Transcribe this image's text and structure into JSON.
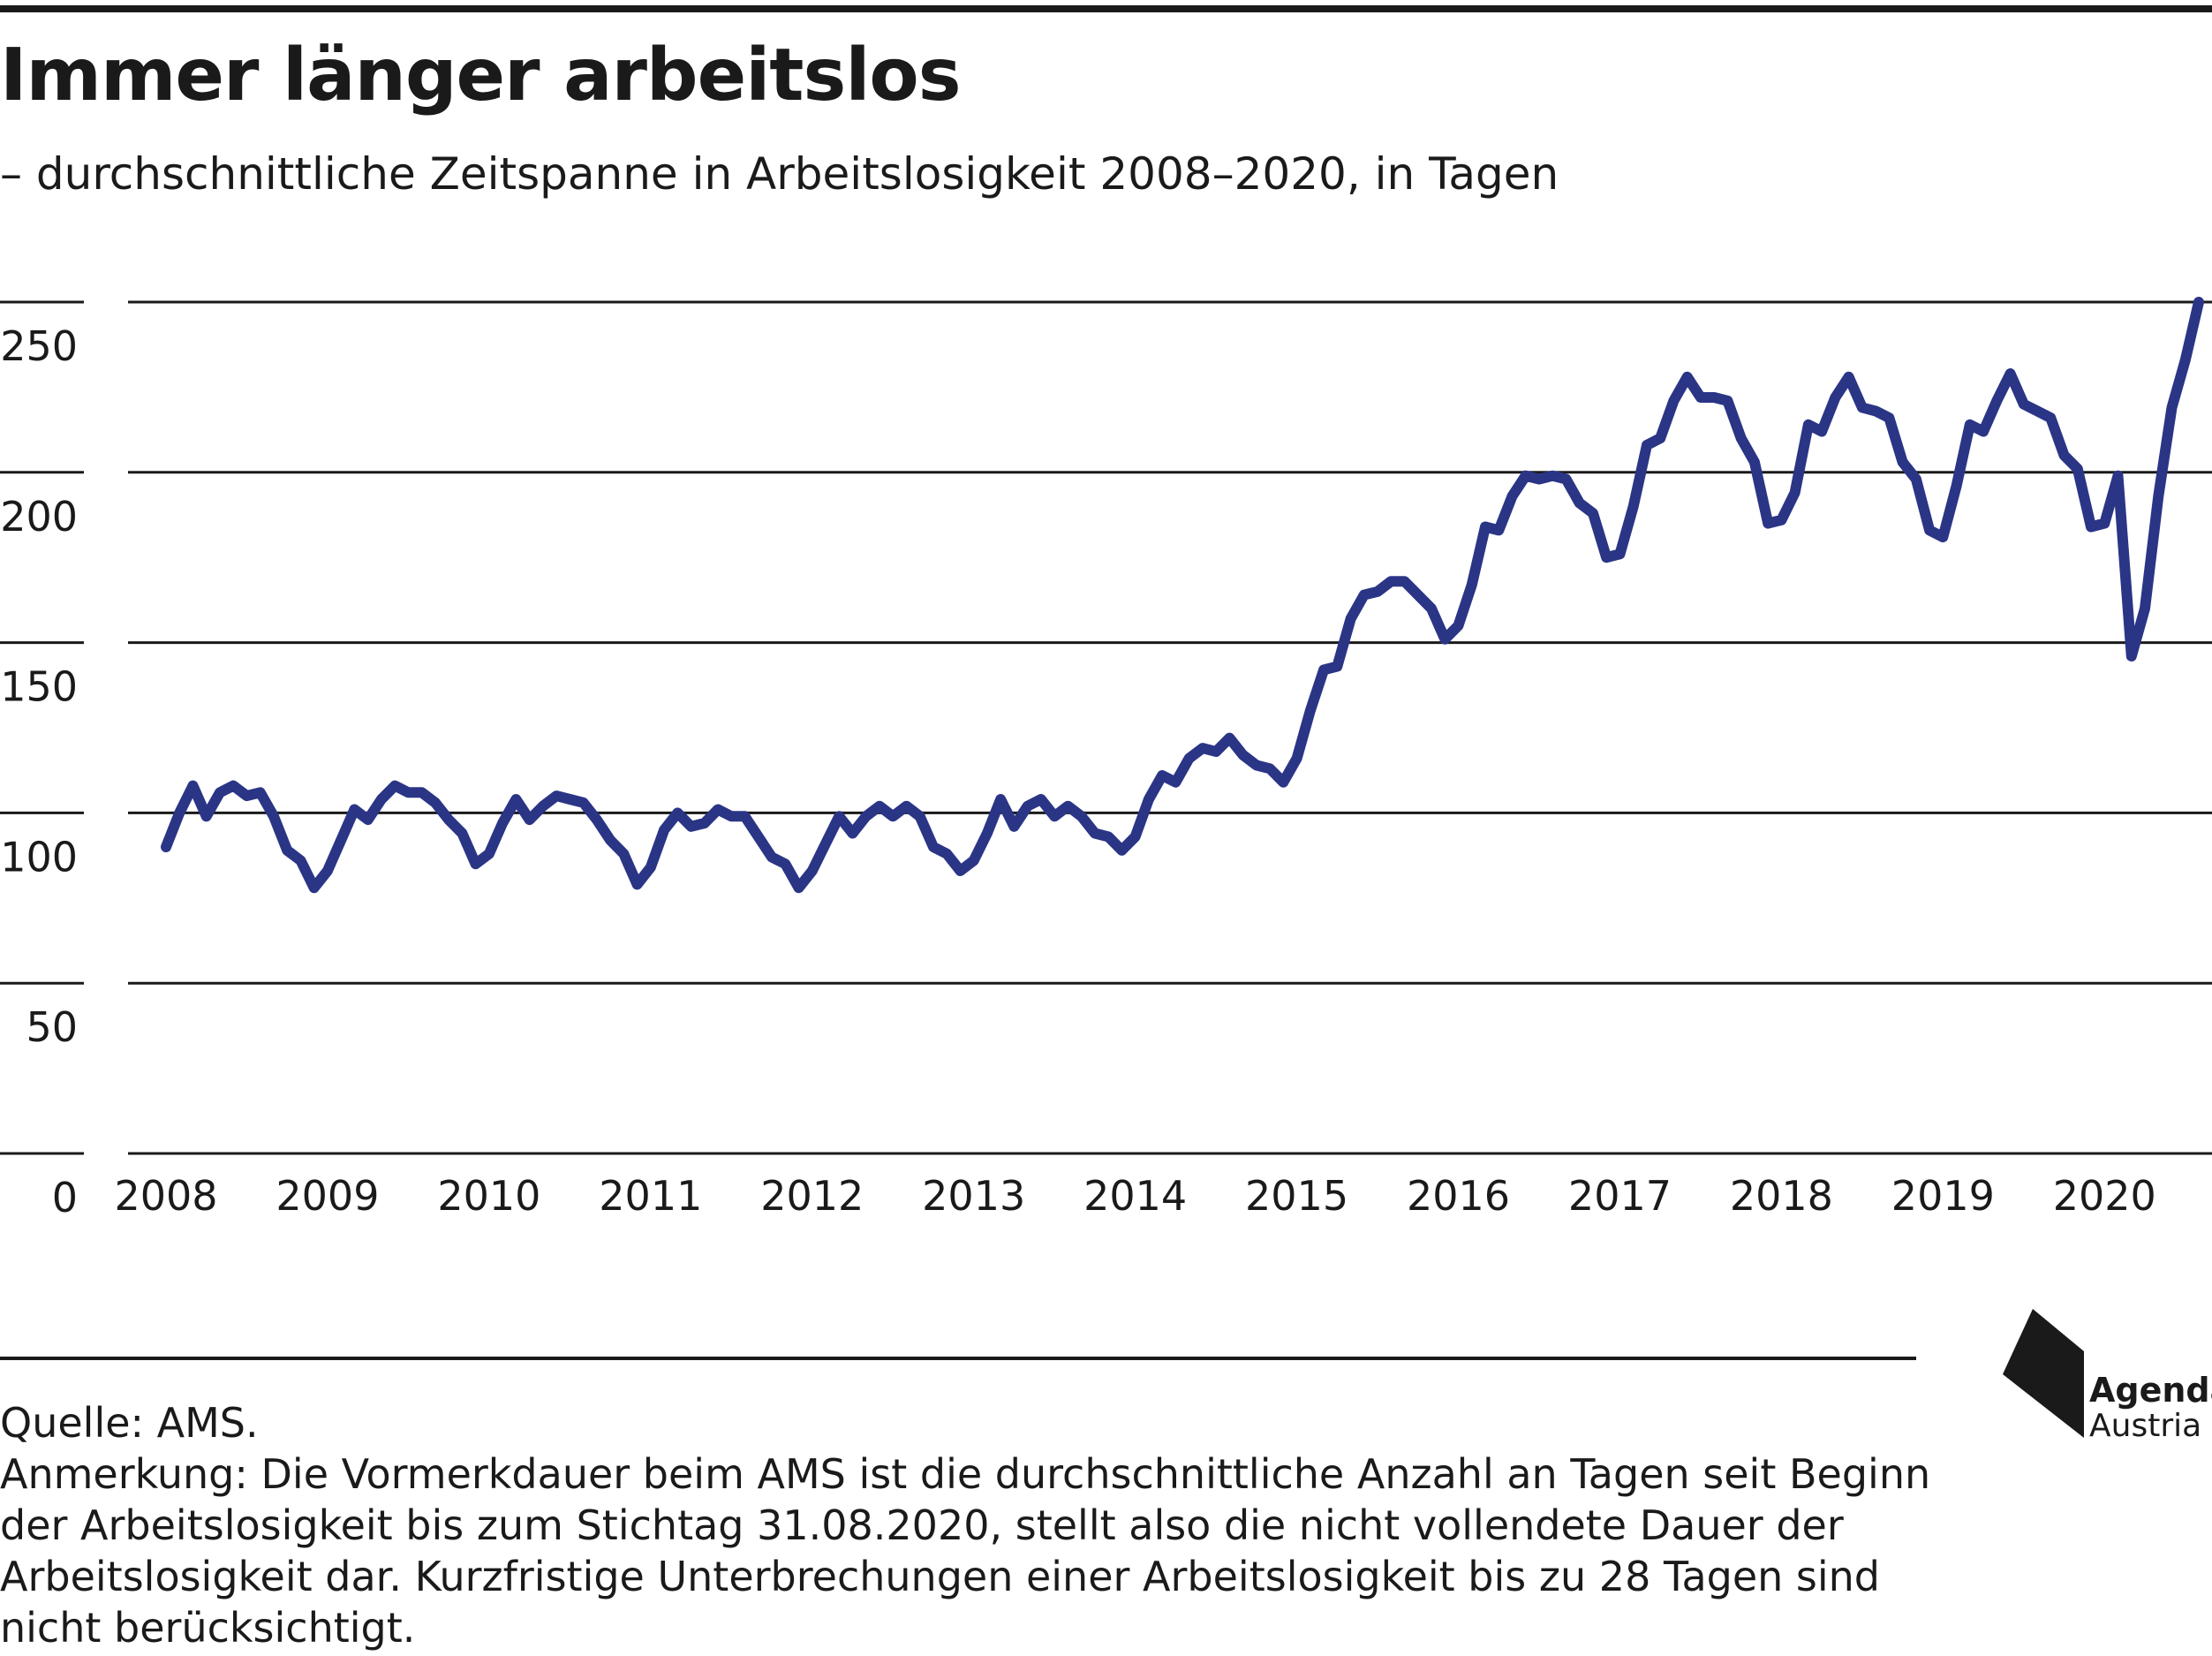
{
  "header": {
    "title": "Immer länger arbeitslos",
    "subtitle": "– durchschnittliche Zeitspanne in Arbeitslosigkeit 2008–2020, in Tagen"
  },
  "footer": {
    "source": "Quelle: AMS.",
    "note": "Anmerkung: Die Vormerkdauer beim AMS ist die durchschnittliche Anzahl an Tagen seit Beginn der Arbeitslosigkeit bis zum Stichtag 31.08.2020, stellt also die nicht vollendete Dauer der Arbeitslosigkeit dar. Kurzfristige Unterbrechungen einer Arbeitslosigkeit bis zu 28 Tagen sind nicht berücksichtigt."
  },
  "logo": {
    "line1": "Agenda",
    "line2": "Austria"
  },
  "colors": {
    "line": "#2b3586",
    "grid": "#1a1a1a",
    "text": "#1a1a1a"
  },
  "chart_data": {
    "type": "line",
    "title": "Immer länger arbeitslos",
    "subtitle": "– durchschnittliche Zeitspanne in Arbeitslosigkeit 2008–2020, in Tagen",
    "ylim": [
      0,
      250
    ],
    "yticks": [
      "0",
      "50",
      "100",
      "150",
      "200",
      "250"
    ],
    "xticks": [
      "2008",
      "2009",
      "2010",
      "2011",
      "2012",
      "2013",
      "2014",
      "2015",
      "2016",
      "2017",
      "2018",
      "2019",
      "2020"
    ],
    "grid": true,
    "legend": "none",
    "series": [
      {
        "values": [
          90,
          100,
          108,
          99,
          106,
          108,
          105,
          106,
          99,
          89,
          86,
          78,
          83,
          92,
          101,
          98,
          104,
          108,
          106,
          106,
          103,
          98,
          94,
          85,
          88,
          97,
          104,
          98,
          102,
          105,
          104,
          103,
          98,
          92,
          88,
          79,
          84,
          95,
          100,
          96,
          97,
          101,
          99,
          99,
          93,
          87,
          85,
          78,
          83,
          91,
          99,
          94,
          99,
          102,
          99,
          102,
          99,
          90,
          88,
          83,
          86,
          94,
          104,
          96,
          102,
          104,
          99,
          102,
          99,
          94,
          93,
          89,
          93,
          104,
          111,
          109,
          116,
          119,
          118,
          122,
          117,
          114,
          113,
          109,
          116,
          130,
          142,
          143,
          157,
          164,
          165,
          168,
          168,
          164,
          160,
          151,
          155,
          167,
          184,
          183,
          193,
          199,
          198,
          199,
          198,
          191,
          188,
          175,
          176,
          190,
          208,
          210,
          221,
          228,
          222,
          222,
          221,
          210,
          203,
          185,
          186,
          194,
          214,
          212,
          222,
          228,
          219,
          218,
          216,
          203,
          198,
          183,
          181,
          196,
          214,
          212,
          221,
          229,
          220,
          218,
          216,
          205,
          201,
          184,
          185,
          199,
          146,
          160,
          193,
          219,
          233,
          250
        ]
      }
    ]
  }
}
